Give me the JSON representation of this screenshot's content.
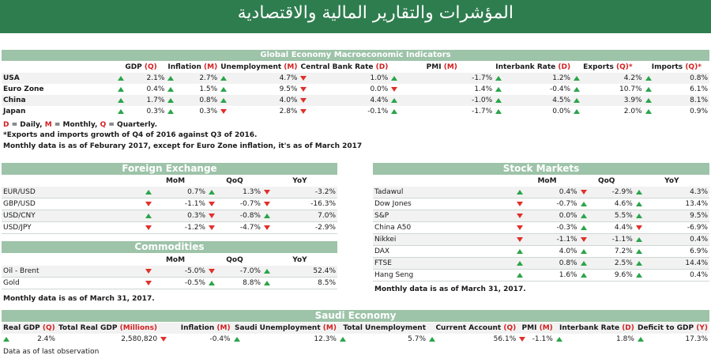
{
  "header": {
    "title": "المؤشرات والتقارير المالية والاقتصادية"
  },
  "global": {
    "title": "Global Economy Macroeconomic Indicators",
    "columns": [
      {
        "name": "GDP ",
        "tag": "(Q)"
      },
      {
        "name": "Inflation ",
        "tag": "(M)"
      },
      {
        "name": "Unemployment ",
        "tag": "(M)"
      },
      {
        "name": "Central Bank Rate ",
        "tag": "(D)"
      },
      {
        "name": "PMI ",
        "tag": "(M)"
      },
      {
        "name": "Interbank Rate ",
        "tag": "(D)"
      },
      {
        "name": "Exports ",
        "tag": "(Q)*"
      },
      {
        "name": "Imports ",
        "tag": "(Q)*"
      }
    ],
    "rows": [
      {
        "name": "USA",
        "vals": [
          [
            "up",
            "2.1%"
          ],
          [
            "up",
            "2.7%"
          ],
          [
            "up",
            "4.7%"
          ],
          [
            "dn",
            "1.0%"
          ],
          [
            "up",
            "-1.7%"
          ],
          [
            "up",
            "1.2%"
          ],
          [
            "up",
            "4.2%"
          ],
          [
            "up",
            "0.8%"
          ]
        ]
      },
      {
        "name": "Euro Zone",
        "vals": [
          [
            "up",
            "0.4%"
          ],
          [
            "up",
            "1.5%"
          ],
          [
            "up",
            "9.5%"
          ],
          [
            "dn",
            "0.0%"
          ],
          [
            "dn",
            "1.4%"
          ],
          [
            "up",
            "-0.4%"
          ],
          [
            "up",
            "10.7%"
          ],
          [
            "up",
            "6.1%"
          ]
        ]
      },
      {
        "name": "China",
        "vals": [
          [
            "up",
            "1.7%"
          ],
          [
            "up",
            "0.8%"
          ],
          [
            "up",
            "4.0%"
          ],
          [
            "dn",
            "4.4%"
          ],
          [
            "up",
            "-1.0%"
          ],
          [
            "up",
            "4.5%"
          ],
          [
            "up",
            "3.9%"
          ],
          [
            "up",
            "8.1%"
          ]
        ]
      },
      {
        "name": "Japan",
        "vals": [
          [
            "up",
            "0.3%"
          ],
          [
            "up",
            "0.3%"
          ],
          [
            "dn",
            "2.8%"
          ],
          [
            "dn",
            "-0.1%"
          ],
          [
            "up",
            "-1.7%"
          ],
          [
            "up",
            "0.0%"
          ],
          [
            "up",
            "2.0%"
          ],
          [
            "up",
            "0.9%"
          ]
        ]
      }
    ],
    "legend": {
      "d": "D",
      "d_txt": " = Daily, ",
      "m": "M",
      "m_txt": " = Monthly, ",
      "q": "Q",
      "q_txt": " = Quarterly."
    },
    "note1": "*Exports and imports growth of Q4 of 2016 against Q3 of 2016.",
    "note2": "Monthly data is as of Feburary 2017, except for Euro Zone inflation, it's as of March 2017"
  },
  "fx": {
    "title": "Foreign Exchange",
    "cols": [
      "MoM",
      "QoQ",
      "YoY"
    ],
    "rows": [
      {
        "name": "EUR/USD",
        "vals": [
          [
            "up",
            "0.7%"
          ],
          [
            "up",
            "1.3%"
          ],
          [
            "dn",
            "-3.2%"
          ]
        ]
      },
      {
        "name": "GBP/USD",
        "vals": [
          [
            "dn",
            "-1.1%"
          ],
          [
            "dn",
            "-0.7%"
          ],
          [
            "dn",
            "-16.3%"
          ]
        ]
      },
      {
        "name": "USD/CNY",
        "vals": [
          [
            "up",
            "0.3%"
          ],
          [
            "dn",
            "-0.8%"
          ],
          [
            "up",
            "7.0%"
          ]
        ]
      },
      {
        "name": "USD/JPY",
        "vals": [
          [
            "dn",
            "-1.2%"
          ],
          [
            "dn",
            "-4.7%"
          ],
          [
            "dn",
            "-2.9%"
          ]
        ]
      }
    ]
  },
  "commodities": {
    "title": "Commodities",
    "cols": [
      "MoM",
      "QoQ",
      "YoY"
    ],
    "rows": [
      {
        "name": "Oil - Brent",
        "vals": [
          [
            "dn",
            "-5.0%"
          ],
          [
            "dn",
            "-7.0%"
          ],
          [
            "up",
            "52.4%"
          ]
        ]
      },
      {
        "name": "Gold",
        "vals": [
          [
            "dn",
            "-0.5%"
          ],
          [
            "up",
            "8.8%"
          ],
          [
            "up",
            "8.5%"
          ]
        ]
      }
    ],
    "note": "Monthly data is as of March 31, 2017."
  },
  "stocks": {
    "title": "Stock Markets",
    "cols": [
      "MoM",
      "QoQ",
      "YoY"
    ],
    "rows": [
      {
        "name": "Tadawul",
        "vals": [
          [
            "up",
            "0.4%"
          ],
          [
            "dn",
            "-2.9%"
          ],
          [
            "up",
            "4.3%"
          ]
        ]
      },
      {
        "name": "Dow Jones",
        "vals": [
          [
            "dn",
            "-0.7%"
          ],
          [
            "up",
            "4.6%"
          ],
          [
            "up",
            "13.4%"
          ]
        ]
      },
      {
        "name": "S&P",
        "vals": [
          [
            "dn",
            "0.0%"
          ],
          [
            "up",
            "5.5%"
          ],
          [
            "up",
            "9.5%"
          ]
        ]
      },
      {
        "name": "China A50",
        "vals": [
          [
            "dn",
            "-0.3%"
          ],
          [
            "up",
            "4.4%"
          ],
          [
            "dn",
            "-6.9%"
          ]
        ]
      },
      {
        "name": "Nikkei",
        "vals": [
          [
            "dn",
            "-1.1%"
          ],
          [
            "dn",
            "-1.1%"
          ],
          [
            "up",
            "0.4%"
          ]
        ]
      },
      {
        "name": "DAX",
        "vals": [
          [
            "up",
            "4.0%"
          ],
          [
            "up",
            "7.2%"
          ],
          [
            "up",
            "6.9%"
          ]
        ]
      },
      {
        "name": "FTSE",
        "vals": [
          [
            "up",
            "0.8%"
          ],
          [
            "up",
            "2.5%"
          ],
          [
            "up",
            "14.4%"
          ]
        ]
      },
      {
        "name": "Hang Seng",
        "vals": [
          [
            "up",
            "1.6%"
          ],
          [
            "up",
            "9.6%"
          ],
          [
            "up",
            "0.4%"
          ]
        ]
      }
    ],
    "note": "Monthly data is as of March 31, 2017."
  },
  "saudi": {
    "title": "Saudi Economy",
    "cols": [
      {
        "name": "Real GDP ",
        "tag": "(Q)"
      },
      {
        "name": "Total Real GDP ",
        "tag": "(Millions)"
      },
      {
        "name": "Inflation ",
        "tag": "(M)"
      },
      {
        "name": "Saudi Unemployment ",
        "tag": "(M)"
      },
      {
        "name": "Total Unemployment",
        "tag": ""
      },
      {
        "name": "Current Account ",
        "tag": "(Q)"
      },
      {
        "name": "PMI ",
        "tag": "(M)"
      },
      {
        "name": "Interbank Rate ",
        "tag": "(D)"
      },
      {
        "name": "Deficit to GDP ",
        "tag": "(Y)"
      }
    ],
    "vals": [
      [
        "up",
        "2.4%"
      ],
      [
        "",
        "2,580,820"
      ],
      [
        "dn",
        "-0.4%"
      ],
      [
        "up",
        "12.3%"
      ],
      [
        "up",
        "5.7%"
      ],
      [
        "up",
        "56.1%"
      ],
      [
        "dn",
        "-1.1%"
      ],
      [
        "up",
        "1.8%"
      ],
      [
        "up",
        "17.3%"
      ]
    ],
    "note": "Data as of last observation"
  }
}
